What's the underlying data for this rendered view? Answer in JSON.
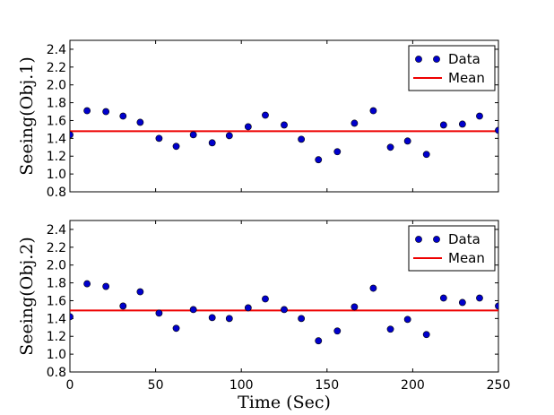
{
  "colors": {
    "data": "#0000cc",
    "mean": "#ee0000",
    "axis": "#000000"
  },
  "chart_data": [
    {
      "type": "scatter",
      "ylabel": "Seeing(Obj.1)",
      "xlabel": "",
      "xlim": [
        0,
        250
      ],
      "ylim": [
        0.8,
        2.5
      ],
      "yticks": [
        "0.8",
        "1.0",
        "1.2",
        "1.4",
        "1.6",
        "1.8",
        "2.0",
        "2.2",
        "2.4"
      ],
      "ytick_values": [
        0.8,
        1.0,
        1.2,
        1.4,
        1.6,
        1.8,
        2.0,
        2.2,
        2.4
      ],
      "show_xticklabels": false,
      "legend": {
        "placement": "top-right",
        "data_label": "Data",
        "mean_label": "Mean"
      },
      "mean": 1.48,
      "x": [
        0,
        10,
        21,
        31,
        41,
        52,
        62,
        72,
        83,
        93,
        104,
        114,
        125,
        135,
        145,
        156,
        166,
        177,
        187,
        197,
        208,
        218,
        229,
        239,
        250
      ],
      "y": [
        1.44,
        1.71,
        1.7,
        1.65,
        1.58,
        1.4,
        1.31,
        1.44,
        1.35,
        1.43,
        1.53,
        1.66,
        1.55,
        1.39,
        1.16,
        1.25,
        1.57,
        1.71,
        1.3,
        1.37,
        1.22,
        1.55,
        1.56,
        1.65,
        1.49
      ]
    },
    {
      "type": "scatter",
      "ylabel": "Seeing(Obj.2)",
      "xlabel": "Time (Sec)",
      "xlim": [
        0,
        250
      ],
      "ylim": [
        0.8,
        2.5
      ],
      "yticks": [
        "0.8",
        "1.0",
        "1.2",
        "1.4",
        "1.6",
        "1.8",
        "2.0",
        "2.2",
        "2.4"
      ],
      "ytick_values": [
        0.8,
        1.0,
        1.2,
        1.4,
        1.6,
        1.8,
        2.0,
        2.2,
        2.4
      ],
      "xticks": [
        "0",
        "50",
        "100",
        "150",
        "200",
        "250"
      ],
      "xtick_values": [
        0,
        50,
        100,
        150,
        200,
        250
      ],
      "show_xticklabels": true,
      "legend": {
        "placement": "top-right",
        "data_label": "Data",
        "mean_label": "Mean"
      },
      "mean": 1.49,
      "x": [
        0,
        10,
        21,
        31,
        41,
        52,
        62,
        72,
        83,
        93,
        104,
        114,
        125,
        135,
        145,
        156,
        166,
        177,
        187,
        197,
        208,
        218,
        229,
        239,
        250
      ],
      "y": [
        1.42,
        1.79,
        1.76,
        1.54,
        1.7,
        1.46,
        1.29,
        1.5,
        1.41,
        1.4,
        1.52,
        1.62,
        1.5,
        1.4,
        1.15,
        1.26,
        1.53,
        1.74,
        1.28,
        1.39,
        1.22,
        1.63,
        1.58,
        1.63,
        1.54
      ]
    }
  ]
}
